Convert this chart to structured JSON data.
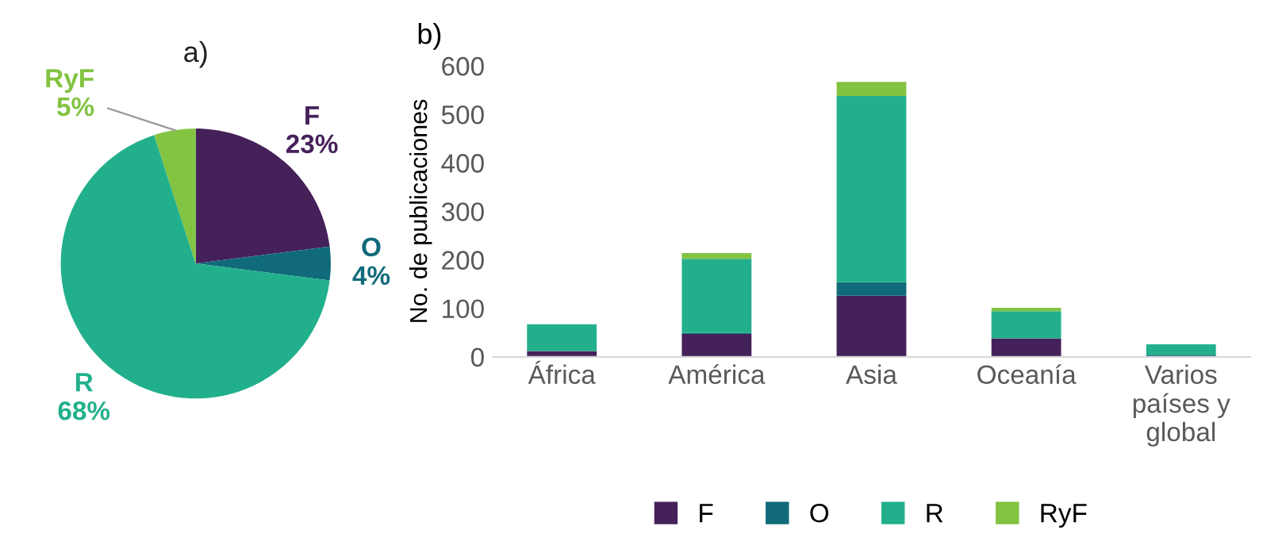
{
  "chart_data": [
    {
      "type": "pie",
      "title": "a)",
      "categories": [
        "F",
        "O",
        "R",
        "RyF"
      ],
      "values": [
        23,
        4,
        68,
        5
      ],
      "colors": [
        "#45215a",
        "#106a7a",
        "#22b08c",
        "#82c341"
      ],
      "value_labels": [
        "23%",
        "4%",
        "68%",
        "5%"
      ]
    },
    {
      "type": "bar",
      "title": "b)",
      "ylabel": "No. de publicaciones",
      "stacked": true,
      "categories": [
        "África",
        "América",
        "Asia",
        "Oceanía",
        "Varios\npaíses y\nglobal"
      ],
      "series": [
        {
          "name": "F",
          "color": "#45215a",
          "values": [
            12,
            47,
            126,
            38,
            null
          ]
        },
        {
          "name": "O",
          "color": "#106a7a",
          "values": [
            null,
            2,
            28,
            null,
            4
          ]
        },
        {
          "name": "R",
          "color": "#22b08c",
          "values": [
            55,
            153,
            384,
            56,
            22
          ]
        },
        {
          "name": "RyF",
          "color": "#82c341",
          "values": [
            0,
            12,
            29,
            7,
            0
          ]
        }
      ],
      "ylim": [
        0,
        600
      ],
      "yticks": [
        0,
        100,
        200,
        300,
        400,
        500,
        600
      ],
      "grid": false,
      "legend": "bottom"
    }
  ]
}
